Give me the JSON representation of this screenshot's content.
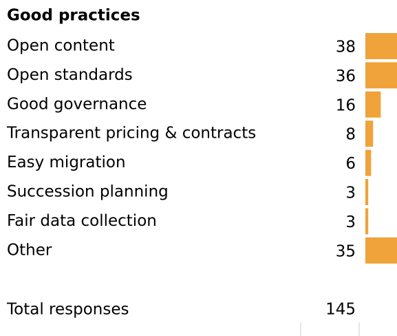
{
  "chart_data": {
    "type": "bar",
    "title": "Good practices",
    "categories": [
      "Open content",
      "Open standards",
      "Good governance",
      "Transparent pricing & contracts",
      "Easy migration",
      "Succession planning",
      "Fair data collection",
      "Other"
    ],
    "values": [
      38,
      36,
      16,
      8,
      6,
      3,
      3,
      35
    ],
    "color": "#f0a33a",
    "total_label": "Total responses",
    "total_value": 145
  }
}
